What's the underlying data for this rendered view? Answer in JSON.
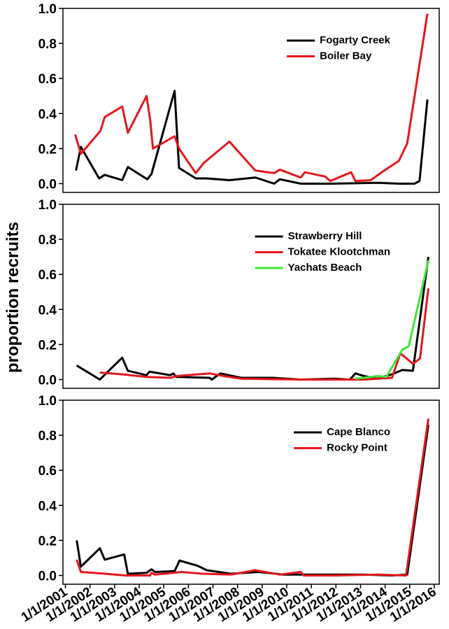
{
  "ylabel": "proportion recruits",
  "chart_data": [
    {
      "type": "line",
      "xlim": [
        2000.9,
        2016.2
      ],
      "ylim": [
        -0.05,
        1.0
      ],
      "yticks": [
        {
          "value": 0,
          "label": "0.0"
        },
        {
          "value": 0.2,
          "label": "0.2"
        },
        {
          "value": 0.4,
          "label": "0.4"
        },
        {
          "value": 0.6,
          "label": "0.6"
        },
        {
          "value": 0.8,
          "label": "0.8"
        },
        {
          "value": 1.0,
          "label": "1.0"
        }
      ],
      "legend": "upper right",
      "series": [
        {
          "name": "Fogarty Creek",
          "color": "#000000",
          "x": [
            2001.43,
            2001.63,
            2002.37,
            2002.6,
            2003.31,
            2003.54,
            2004.33,
            2004.5,
            2005.44,
            2005.62,
            2006.3,
            2006.73,
            2007.67,
            2008.72,
            2009.49,
            2009.72,
            2010.57,
            2011.85,
            2013.71,
            2014.56,
            2015.2,
            2015.4,
            2015.72
          ],
          "values": [
            0.075,
            0.21,
            0.03,
            0.05,
            0.02,
            0.095,
            0.025,
            0.055,
            0.53,
            0.09,
            0.03,
            0.03,
            0.02,
            0.035,
            0,
            0.025,
            0,
            0,
            0.005,
            0,
            0,
            0.015,
            0.48
          ]
        },
        {
          "name": "Boiler Bay",
          "color": "#e3171c",
          "x": [
            2001.4,
            2001.63,
            2002.42,
            2002.6,
            2003.31,
            2003.54,
            2004.3,
            2004.45,
            2004.56,
            2005.44,
            2005.62,
            2006.3,
            2006.64,
            2007.67,
            2008.72,
            2009.49,
            2009.72,
            2010.57,
            2010.74,
            2011.57,
            2011.77,
            2012.62,
            2012.79,
            2013.42,
            2013.91,
            2014.56,
            2014.9,
            2015.72
          ],
          "values": [
            0.28,
            0.17,
            0.3,
            0.38,
            0.44,
            0.29,
            0.5,
            0.36,
            0.2,
            0.27,
            0.2,
            0.06,
            0.12,
            0.24,
            0.075,
            0.06,
            0.08,
            0.035,
            0.065,
            0.04,
            0.015,
            0.065,
            0.015,
            0.02,
            0.07,
            0.13,
            0.23,
            0.97
          ]
        }
      ]
    },
    {
      "type": "line",
      "xlim": [
        2000.9,
        2016.2
      ],
      "ylim": [
        -0.05,
        1.0
      ],
      "yticks": [
        {
          "value": 0,
          "label": "0.0"
        },
        {
          "value": 0.2,
          "label": "0.2"
        },
        {
          "value": 0.4,
          "label": "0.4"
        },
        {
          "value": 0.6,
          "label": "0.6"
        },
        {
          "value": 0.8,
          "label": "0.8"
        },
        {
          "value": 1.0,
          "label": "1.0"
        }
      ],
      "legend": "upper right",
      "series": [
        {
          "name": "Strawberry Hill",
          "color": "#000000",
          "x": [
            2001.46,
            2002.4,
            2003.31,
            2003.54,
            2004.3,
            2004.42,
            2005.27,
            2005.39,
            2005.5,
            2006.87,
            2006.95,
            2007.3,
            2008.15,
            2009.43,
            2010.57,
            2011.94,
            2012.57,
            2012.79,
            2013.14,
            2013.71,
            2014.28,
            2014.7,
            2015.13,
            2015.76
          ],
          "values": [
            0.08,
            0,
            0.125,
            0.05,
            0.025,
            0.045,
            0.025,
            0.035,
            0.015,
            0.01,
            0,
            0.035,
            0.01,
            0.01,
            0,
            0.005,
            0,
            0.035,
            0.02,
            0.005,
            0.03,
            0.055,
            0.05,
            0.7
          ]
        },
        {
          "name": "Tokatee Klootchman",
          "color": "#e3171c",
          "x": [
            2002.4,
            2003.31,
            2004.3,
            2005.3,
            2005.5,
            2006.87,
            2007.44,
            2008.15,
            2010.57,
            2013.14,
            2013.71,
            2014.28,
            2014.62,
            2015.13,
            2015.42,
            2015.76
          ],
          "values": [
            0.04,
            0.03,
            0.015,
            0.01,
            0.02,
            0.035,
            0.02,
            0.005,
            0,
            0,
            0.005,
            0.01,
            0.15,
            0.09,
            0.12,
            0.52
          ]
        },
        {
          "name": "Yachats Beach",
          "color": "#3ee63a",
          "x": [
            2012.79,
            2013.71,
            2014.05,
            2014.7,
            2014.96,
            2015.76
          ],
          "values": [
            0.005,
            0.02,
            0.015,
            0.17,
            0.19,
            0.68
          ]
        }
      ]
    },
    {
      "type": "line",
      "xlim": [
        2000.9,
        2016.2
      ],
      "ylim": [
        -0.05,
        1.0
      ],
      "yticks": [
        {
          "value": 0,
          "label": "0.0"
        },
        {
          "value": 0.2,
          "label": "0.2"
        },
        {
          "value": 0.4,
          "label": "0.4"
        },
        {
          "value": 0.6,
          "label": "0.6"
        },
        {
          "value": 0.8,
          "label": "0.8"
        },
        {
          "value": 1.0,
          "label": "1.0"
        }
      ],
      "xticks": [
        {
          "value": 2001,
          "label": "1/1/2001"
        },
        {
          "value": 2002,
          "label": "1/1/2002"
        },
        {
          "value": 2003,
          "label": "1/1/2003"
        },
        {
          "value": 2004,
          "label": "1/1/2004"
        },
        {
          "value": 2005,
          "label": "1/1/2005"
        },
        {
          "value": 2006,
          "label": "1/1/2006"
        },
        {
          "value": 2007,
          "label": "1/1/2007"
        },
        {
          "value": 2008,
          "label": "1/1/2008"
        },
        {
          "value": 2009,
          "label": "1/1/2009"
        },
        {
          "value": 2010,
          "label": "1/1/2010"
        },
        {
          "value": 2011,
          "label": "1/1/2011"
        },
        {
          "value": 2012,
          "label": "1/1/2012"
        },
        {
          "value": 2013,
          "label": "1/1/2013"
        },
        {
          "value": 2014,
          "label": "1/1/2014"
        },
        {
          "value": 2015,
          "label": "1/1/2015"
        },
        {
          "value": 2016,
          "label": "1/1/2016"
        }
      ],
      "legend": "upper right",
      "series": [
        {
          "name": "Cape Blanco",
          "color": "#000000",
          "x": [
            2001.46,
            2001.63,
            2002.4,
            2002.6,
            2003.39,
            2003.54,
            2004.3,
            2004.5,
            2004.65,
            2005.44,
            2005.64,
            2006.38,
            2006.75,
            2007.72,
            2008.86,
            2009.86,
            2010.86,
            2012.0,
            2013.14,
            2014.28,
            2014.9,
            2015.76
          ],
          "values": [
            0.2,
            0.05,
            0.155,
            0.09,
            0.12,
            0.01,
            0.015,
            0.035,
            0.02,
            0.025,
            0.085,
            0.055,
            0.03,
            0.01,
            0.02,
            0.005,
            0.005,
            0.005,
            0.005,
            0,
            0.005,
            0.86
          ]
        },
        {
          "name": "Rocky Point",
          "color": "#e3171c",
          "x": [
            2001.46,
            2001.63,
            2002.6,
            2003.45,
            2004.45,
            2004.5,
            2004.65,
            2005.73,
            2006.58,
            2007.72,
            2008.72,
            2009.72,
            2010.57,
            2010.69,
            2012.0,
            2013.71,
            2014.85,
            2015.76
          ],
          "values": [
            0.09,
            0.02,
            0.01,
            0,
            0,
            0.015,
            0.005,
            0.02,
            0.01,
            0.005,
            0.03,
            0.005,
            0.02,
            0,
            0,
            0.005,
            0,
            0.895
          ]
        }
      ]
    }
  ]
}
